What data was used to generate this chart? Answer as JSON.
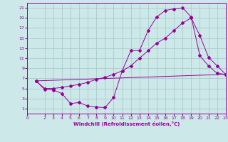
{
  "xlabel": "Windchill (Refroidissement éolien,°C)",
  "bg_color": "#cce8e8",
  "grid_color": "#aacccc",
  "line_color": "#990099",
  "xlim": [
    0,
    23
  ],
  "ylim": [
    0,
    22
  ],
  "xticks": [
    0,
    2,
    3,
    4,
    5,
    6,
    7,
    8,
    9,
    10,
    11,
    12,
    13,
    14,
    15,
    16,
    17,
    18,
    19,
    20,
    21,
    22,
    23
  ],
  "yticks": [
    1,
    3,
    5,
    7,
    9,
    11,
    13,
    15,
    17,
    19,
    21
  ],
  "line1_x": [
    1,
    23
  ],
  "line1_y": [
    6.5,
    7.8
  ],
  "line2_x": [
    1,
    2,
    3,
    4,
    5,
    6,
    7,
    8,
    9,
    10,
    11,
    12,
    13,
    14,
    15,
    16,
    17,
    18,
    19,
    20,
    21,
    22,
    23
  ],
  "line2_y": [
    6.5,
    4.8,
    4.7,
    4.0,
    2.0,
    2.2,
    1.5,
    1.3,
    1.2,
    3.2,
    8.5,
    12.5,
    12.5,
    16.5,
    19.2,
    20.5,
    20.8,
    21.0,
    19.2,
    11.5,
    9.5,
    8.0,
    7.8
  ],
  "line3_x": [
    1,
    2,
    3,
    4,
    5,
    6,
    7,
    8,
    9,
    10,
    11,
    12,
    13,
    14,
    15,
    16,
    17,
    18,
    19,
    20,
    21,
    22,
    23
  ],
  "line3_y": [
    6.5,
    5.0,
    5.0,
    5.2,
    5.5,
    5.8,
    6.2,
    6.8,
    7.2,
    7.8,
    8.5,
    9.5,
    11.0,
    12.5,
    14.0,
    15.0,
    16.5,
    18.0,
    19.0,
    15.5,
    11.2,
    9.5,
    7.8
  ]
}
